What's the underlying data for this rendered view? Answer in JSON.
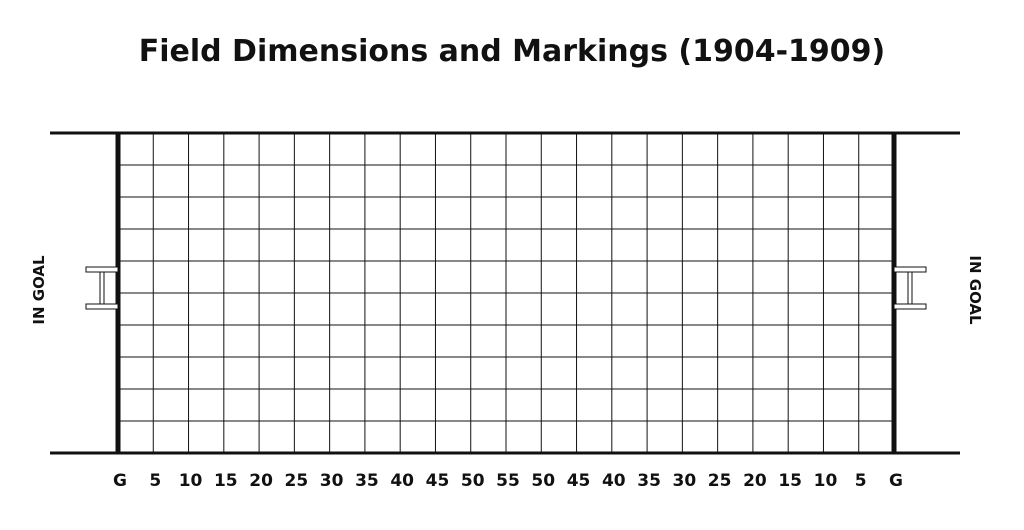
{
  "title": "Field Dimensions and Markings (1904-1909)",
  "end_zone_label_left": "IN GOAL",
  "end_zone_label_right": "IN GOAL",
  "yard_labels": [
    "G",
    "5",
    "10",
    "15",
    "20",
    "25",
    "30",
    "35",
    "40",
    "45",
    "50",
    "55",
    "50",
    "45",
    "40",
    "35",
    "30",
    "25",
    "20",
    "15",
    "10",
    "5",
    "G"
  ],
  "grid": {
    "vertical_divisions": 22,
    "horizontal_divisions": 10
  },
  "colors": {
    "lines": "#111111",
    "background": "#ffffff"
  }
}
